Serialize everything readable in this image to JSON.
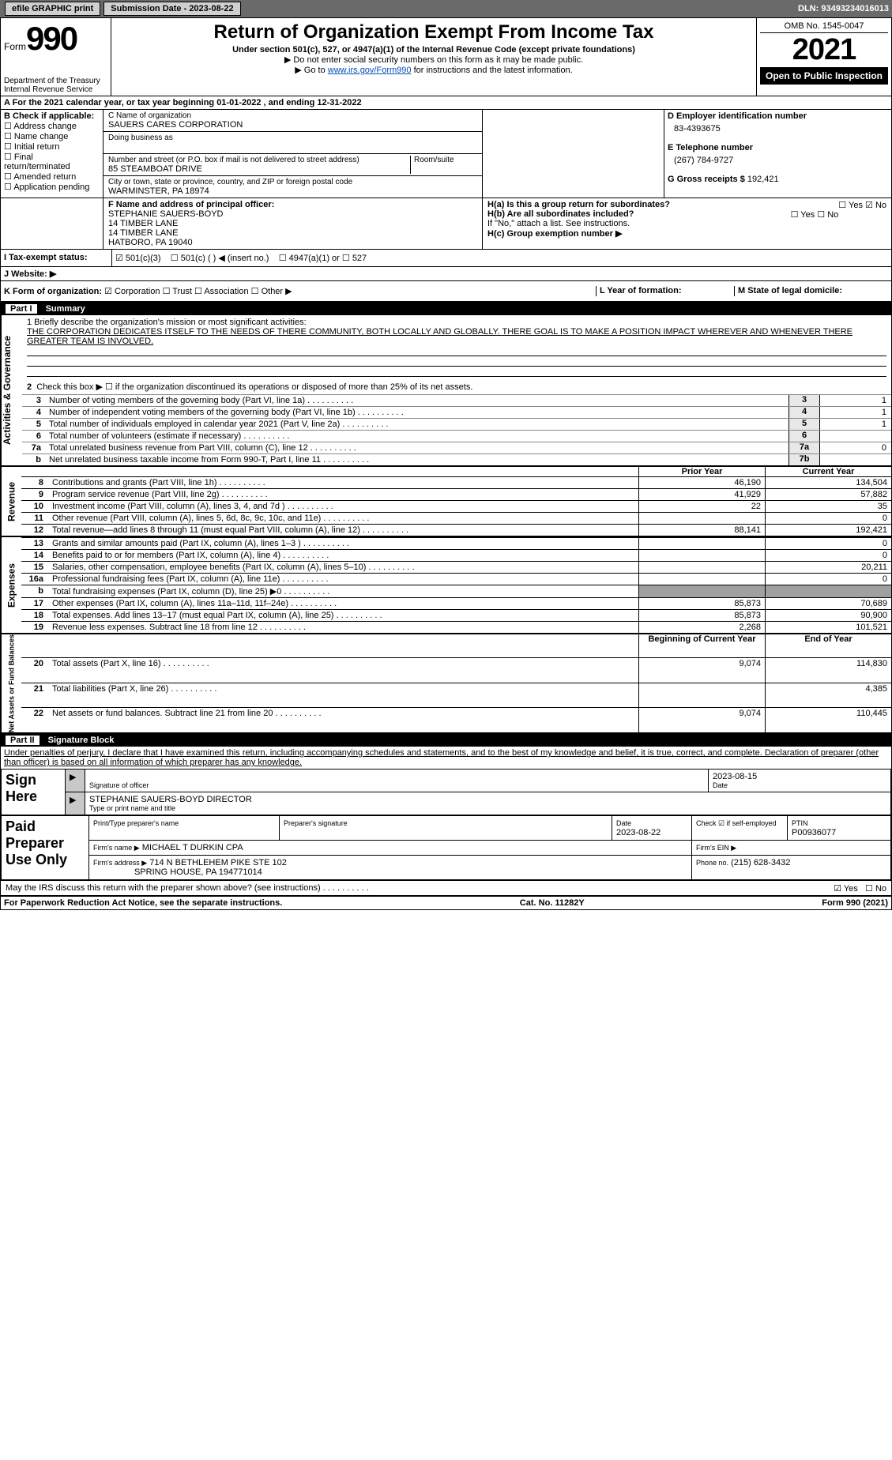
{
  "topbar": {
    "efile": "efile GRAPHIC print",
    "subdate_label": "Submission Date - 2023-08-22",
    "dln_label": "DLN: 93493234016013"
  },
  "mast": {
    "form_word": "Form",
    "form_no": "990",
    "dept": "Department of the Treasury\nInternal Revenue Service",
    "title": "Return of Organization Exempt From Income Tax",
    "sub": "Under section 501(c), 527, or 4947(a)(1) of the Internal Revenue Code (except private foundations)",
    "note1": "▶ Do not enter social security numbers on this form as it may be made public.",
    "note2_pre": "▶ Go to ",
    "note2_link": "www.irs.gov/Form990",
    "note2_post": " for instructions and the latest information.",
    "omb": "OMB No. 1545-0047",
    "year": "2021",
    "otp": "Open to Public Inspection"
  },
  "lineA": "A For the 2021 calendar year, or tax year beginning 01-01-2022    , and ending 12-31-2022",
  "B": {
    "label": "B Check if applicable:",
    "items": [
      "Address change",
      "Name change",
      "Initial return",
      "Final return/terminated",
      "Amended return",
      "Application pending"
    ]
  },
  "C": {
    "name_label": "C Name of organization",
    "name": "SAUERS CARES CORPORATION",
    "dba_label": "Doing business as",
    "addr_label": "Number and street (or P.O. box if mail is not delivered to street address)",
    "room_label": "Room/suite",
    "addr": "85 STEAMBOAT DRIVE",
    "city_label": "City or town, state or province, country, and ZIP or foreign postal code",
    "city": "WARMINSTER, PA  18974"
  },
  "D": {
    "label": "D Employer identification number",
    "value": "83-4393675"
  },
  "E": {
    "label": "E Telephone number",
    "value": "(267) 784-9727"
  },
  "G": {
    "label": "G Gross receipts $",
    "value": "192,421"
  },
  "F": {
    "label": "F  Name and address of principal officer:",
    "l1": "STEPHANIE SAUERS-BOYD",
    "l2": "14 TIMBER LANE",
    "l3": "14 TIMBER LANE",
    "l4": "HATBORO, PA  19040"
  },
  "H": {
    "a": "H(a)  Is this a group return for subordinates?",
    "a_yes": "Yes",
    "a_no": "No",
    "b": "H(b)  Are all subordinates included?",
    "b_yes": "Yes",
    "b_no": "No",
    "note": "If \"No,\" attach a list. See instructions.",
    "c": "H(c)  Group exemption number ▶"
  },
  "I": {
    "label": "I  Tax-exempt status:",
    "opt1": "501(c)(3)",
    "opt2": "501(c) (   ) ◀ (insert no.)",
    "opt3": "4947(a)(1) or",
    "opt4": "527"
  },
  "J": {
    "label": "J  Website: ▶"
  },
  "K": {
    "label": "K Form of organization:",
    "o1": "Corporation",
    "o2": "Trust",
    "o3": "Association",
    "o4": "Other ▶"
  },
  "L": {
    "label": "L Year of formation:"
  },
  "M": {
    "label": "M State of legal domicile:"
  },
  "partI": {
    "bar": "Part I",
    "title": "Summary"
  },
  "summary": {
    "q1": "1  Briefly describe the organization's mission or most significant activities:",
    "mission": "THE CORPORATION DEDICATES ITSELF TO THE NEEDS OF THERE COMMUNITY, BOTH LOCALLY AND GLOBALLY. THERE GOAL IS TO MAKE A POSITION IMPACT WHEREVER AND WHENEVER THERE GREATER TEAM IS INVOLVED.",
    "q2": "Check this box ▶ ☐  if the organization discontinued its operations or disposed of more than 25% of its net assets.",
    "lines": [
      {
        "n": "3",
        "d": "Number of voting members of the governing body (Part VI, line 1a)",
        "cn": "3",
        "v": "1"
      },
      {
        "n": "4",
        "d": "Number of independent voting members of the governing body (Part VI, line 1b)",
        "cn": "4",
        "v": "1"
      },
      {
        "n": "5",
        "d": "Total number of individuals employed in calendar year 2021 (Part V, line 2a)",
        "cn": "5",
        "v": "1"
      },
      {
        "n": "6",
        "d": "Total number of volunteers (estimate if necessary)",
        "cn": "6",
        "v": ""
      },
      {
        "n": "7a",
        "d": "Total unrelated business revenue from Part VIII, column (C), line 12",
        "cn": "7a",
        "v": "0"
      },
      {
        "n": "b",
        "d": "Net unrelated business taxable income from Form 990-T, Part I, line 11",
        "cn": "7b",
        "v": ""
      }
    ],
    "side": "Activities & Governance"
  },
  "revenue": {
    "side": "Revenue",
    "hdr_py": "Prior Year",
    "hdr_cy": "Current Year",
    "rows": [
      {
        "n": "8",
        "d": "Contributions and grants (Part VIII, line 1h)",
        "py": "46,190",
        "cy": "134,504"
      },
      {
        "n": "9",
        "d": "Program service revenue (Part VIII, line 2g)",
        "py": "41,929",
        "cy": "57,882"
      },
      {
        "n": "10",
        "d": "Investment income (Part VIII, column (A), lines 3, 4, and 7d )",
        "py": "22",
        "cy": "35"
      },
      {
        "n": "11",
        "d": "Other revenue (Part VIII, column (A), lines 5, 6d, 8c, 9c, 10c, and 11e)",
        "py": "",
        "cy": "0"
      },
      {
        "n": "12",
        "d": "Total revenue—add lines 8 through 11 (must equal Part VIII, column (A), line 12)",
        "py": "88,141",
        "cy": "192,421"
      }
    ]
  },
  "expenses": {
    "side": "Expenses",
    "rows": [
      {
        "n": "13",
        "d": "Grants and similar amounts paid (Part IX, column (A), lines 1–3 )",
        "py": "",
        "cy": "0"
      },
      {
        "n": "14",
        "d": "Benefits paid to or for members (Part IX, column (A), line 4)",
        "py": "",
        "cy": "0"
      },
      {
        "n": "15",
        "d": "Salaries, other compensation, employee benefits (Part IX, column (A), lines 5–10)",
        "py": "",
        "cy": "20,211"
      },
      {
        "n": "16a",
        "d": "Professional fundraising fees (Part IX, column (A), line 11e)",
        "py": "",
        "cy": "0"
      },
      {
        "n": "b",
        "d": "Total fundraising expenses (Part IX, column (D), line 25) ▶0",
        "py": "shade",
        "cy": "shade"
      },
      {
        "n": "17",
        "d": "Other expenses (Part IX, column (A), lines 11a–11d, 11f–24e)",
        "py": "85,873",
        "cy": "70,689"
      },
      {
        "n": "18",
        "d": "Total expenses. Add lines 13–17 (must equal Part IX, column (A), line 25)",
        "py": "85,873",
        "cy": "90,900"
      },
      {
        "n": "19",
        "d": "Revenue less expenses. Subtract line 18 from line 12",
        "py": "2,268",
        "cy": "101,521"
      }
    ]
  },
  "net": {
    "side": "Net Assets or Fund Balances",
    "hdr_py": "Beginning of Current Year",
    "hdr_cy": "End of Year",
    "rows": [
      {
        "n": "20",
        "d": "Total assets (Part X, line 16)",
        "py": "9,074",
        "cy": "114,830"
      },
      {
        "n": "21",
        "d": "Total liabilities (Part X, line 26)",
        "py": "",
        "cy": "4,385"
      },
      {
        "n": "22",
        "d": "Net assets or fund balances. Subtract line 21 from line 20",
        "py": "9,074",
        "cy": "110,445"
      }
    ]
  },
  "partII": {
    "bar": "Part II",
    "title": "Signature Block"
  },
  "decl": "Under penalties of perjury, I declare that I have examined this return, including accompanying schedules and statements, and to the best of my knowledge and belief, it is true, correct, and complete. Declaration of preparer (other than officer) is based on all information of which preparer has any knowledge.",
  "sign": {
    "here": "Sign Here",
    "sig_lab": "Signature of officer",
    "date": "2023-08-15",
    "date_lab": "Date",
    "name": "STEPHANIE SAUERS-BOYD  DIRECTOR",
    "name_lab": "Type or print name and title"
  },
  "prep": {
    "title": "Paid Preparer Use Only",
    "h1": "Print/Type preparer's name",
    "h2": "Preparer's signature",
    "h3": "Date",
    "h3v": "2023-08-22",
    "h4": "Check ☑ if self-employed",
    "h5": "PTIN",
    "h5v": "P00936077",
    "firm_lab": "Firm's name   ▶",
    "firm": "MICHAEL T DURKIN CPA",
    "ein_lab": "Firm's EIN ▶",
    "addr_lab": "Firm's address ▶",
    "addr1": "714 N BETHLEHEM PIKE STE 102",
    "addr2": "SPRING HOUSE, PA  194771014",
    "phone_lab": "Phone no.",
    "phone": "(215) 628-3432"
  },
  "discuss": "May the IRS discuss this return with the preparer shown above? (see instructions)",
  "discuss_yes": "Yes",
  "discuss_no": "No",
  "footer": {
    "l": "For Paperwork Reduction Act Notice, see the separate instructions.",
    "c": "Cat. No. 11282Y",
    "r": "Form 990 (2021)"
  }
}
